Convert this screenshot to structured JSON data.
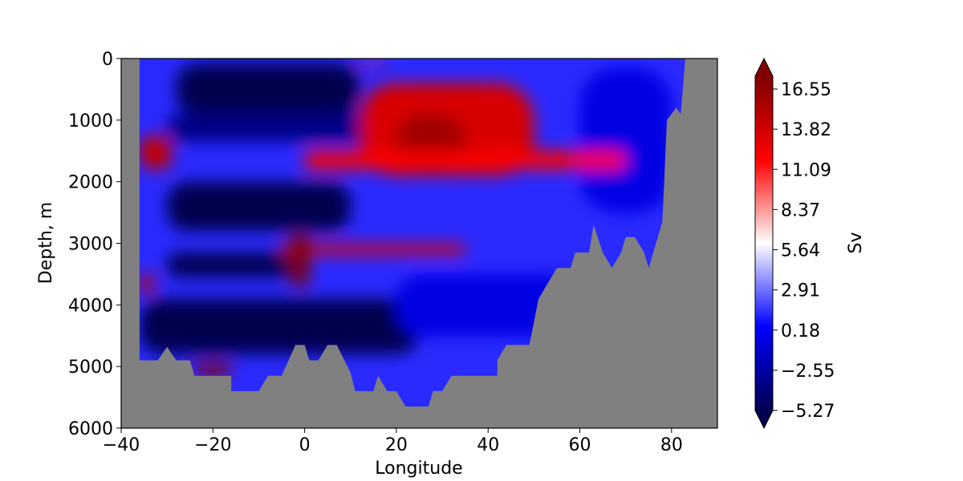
{
  "chart_data": {
    "type": "heatmap",
    "xlabel": "Longitude",
    "ylabel": "Depth, m",
    "colorbar_label": "Sv",
    "xlim": [
      -40,
      90
    ],
    "ylim": [
      6000,
      0
    ],
    "xticks": [
      -40,
      -20,
      0,
      20,
      40,
      60,
      80
    ],
    "yticks": [
      0,
      1000,
      2000,
      3000,
      4000,
      5000,
      6000
    ],
    "colorbar_ticks": [
      "16.55",
      "13.82",
      "11.09",
      "8.37",
      "5.64",
      "2.91",
      "0.18",
      "−2.55",
      "−5.27"
    ],
    "colorbar_range": [
      -5.27,
      17.5
    ],
    "colormap": "seismic",
    "colors": {
      "land": "#808080",
      "max": "#800000",
      "white": "#ffffff",
      "min": "#000050"
    },
    "bathymetry": [
      [
        -40,
        0
      ],
      [
        -36,
        0
      ],
      [
        -36,
        4900
      ],
      [
        -32,
        4900
      ],
      [
        -30,
        4680
      ],
      [
        -28,
        4900
      ],
      [
        -25,
        4900
      ],
      [
        -24,
        5150
      ],
      [
        -16,
        5150
      ],
      [
        -16,
        5400
      ],
      [
        -10,
        5400
      ],
      [
        -8,
        5150
      ],
      [
        -5,
        5150
      ],
      [
        -2,
        4650
      ],
      [
        0,
        4650
      ],
      [
        1,
        4900
      ],
      [
        3,
        4900
      ],
      [
        5,
        4650
      ],
      [
        7,
        4650
      ],
      [
        10,
        5100
      ],
      [
        11,
        5400
      ],
      [
        15,
        5400
      ],
      [
        16,
        5150
      ],
      [
        18,
        5400
      ],
      [
        20,
        5400
      ],
      [
        22,
        5650
      ],
      [
        27,
        5650
      ],
      [
        28,
        5400
      ],
      [
        30,
        5400
      ],
      [
        32,
        5150
      ],
      [
        42,
        5150
      ],
      [
        42,
        4900
      ],
      [
        44,
        4650
      ],
      [
        49,
        4650
      ],
      [
        51,
        3900
      ],
      [
        55,
        3400
      ],
      [
        58,
        3400
      ],
      [
        59,
        3150
      ],
      [
        62,
        3150
      ],
      [
        63,
        2700
      ],
      [
        65,
        3150
      ],
      [
        67,
        3400
      ],
      [
        69,
        3150
      ],
      [
        70,
        2900
      ],
      [
        72,
        2900
      ],
      [
        74,
        3150
      ],
      [
        75,
        3400
      ],
      [
        76,
        3150
      ],
      [
        77,
        2900
      ],
      [
        78,
        2650
      ],
      [
        79,
        1000
      ],
      [
        81,
        800
      ],
      [
        82,
        900
      ],
      [
        83,
        0
      ],
      [
        90,
        0
      ],
      [
        90,
        6000
      ],
      [
        -40,
        6000
      ]
    ],
    "features": [
      {
        "x": [
          -28,
          12
        ],
        "y": [
          80,
          900
        ],
        "value": -5.5
      },
      {
        "x": [
          -30,
          15
        ],
        "y": [
          900,
          1350
        ],
        "value": -3.5
      },
      {
        "x": [
          -30,
          10
        ],
        "y": [
          2000,
          2800
        ],
        "value": -5.5
      },
      {
        "x": [
          -30,
          0
        ],
        "y": [
          3150,
          3550
        ],
        "value": -5.5
      },
      {
        "x": [
          -36,
          25
        ],
        "y": [
          3900,
          4800
        ],
        "value": -5.5
      },
      {
        "x": [
          20,
          60
        ],
        "y": [
          3500,
          4500
        ],
        "value": -0.5
      },
      {
        "x": [
          60,
          80
        ],
        "y": [
          150,
          2500
        ],
        "value": -0.5
      },
      {
        "x": [
          12,
          50
        ],
        "y": [
          400,
          1900
        ],
        "value": 13.5
      },
      {
        "x": [
          20,
          35
        ],
        "y": [
          900,
          1850
        ],
        "value": 16.0
      },
      {
        "x": [
          -36,
          -29
        ],
        "y": [
          1250,
          1800
        ],
        "value": 14.5
      },
      {
        "x": [
          0,
          70
        ],
        "y": [
          1500,
          1800
        ],
        "value": 12.0
      },
      {
        "x": [
          -5,
          35
        ],
        "y": [
          3020,
          3180
        ],
        "value": 13.0
      },
      {
        "x": [
          -3,
          1
        ],
        "y": [
          2850,
          3700
        ],
        "value": 17.5
      },
      {
        "x": [
          -36,
          -33
        ],
        "y": [
          3500,
          3800
        ],
        "value": 14.5
      },
      {
        "x": [
          -24,
          -16
        ],
        "y": [
          4950,
          5150
        ],
        "value": 17.0
      },
      {
        "x": [
          12,
          18
        ],
        "y": [
          30,
          90
        ],
        "value": 11.0
      }
    ]
  }
}
